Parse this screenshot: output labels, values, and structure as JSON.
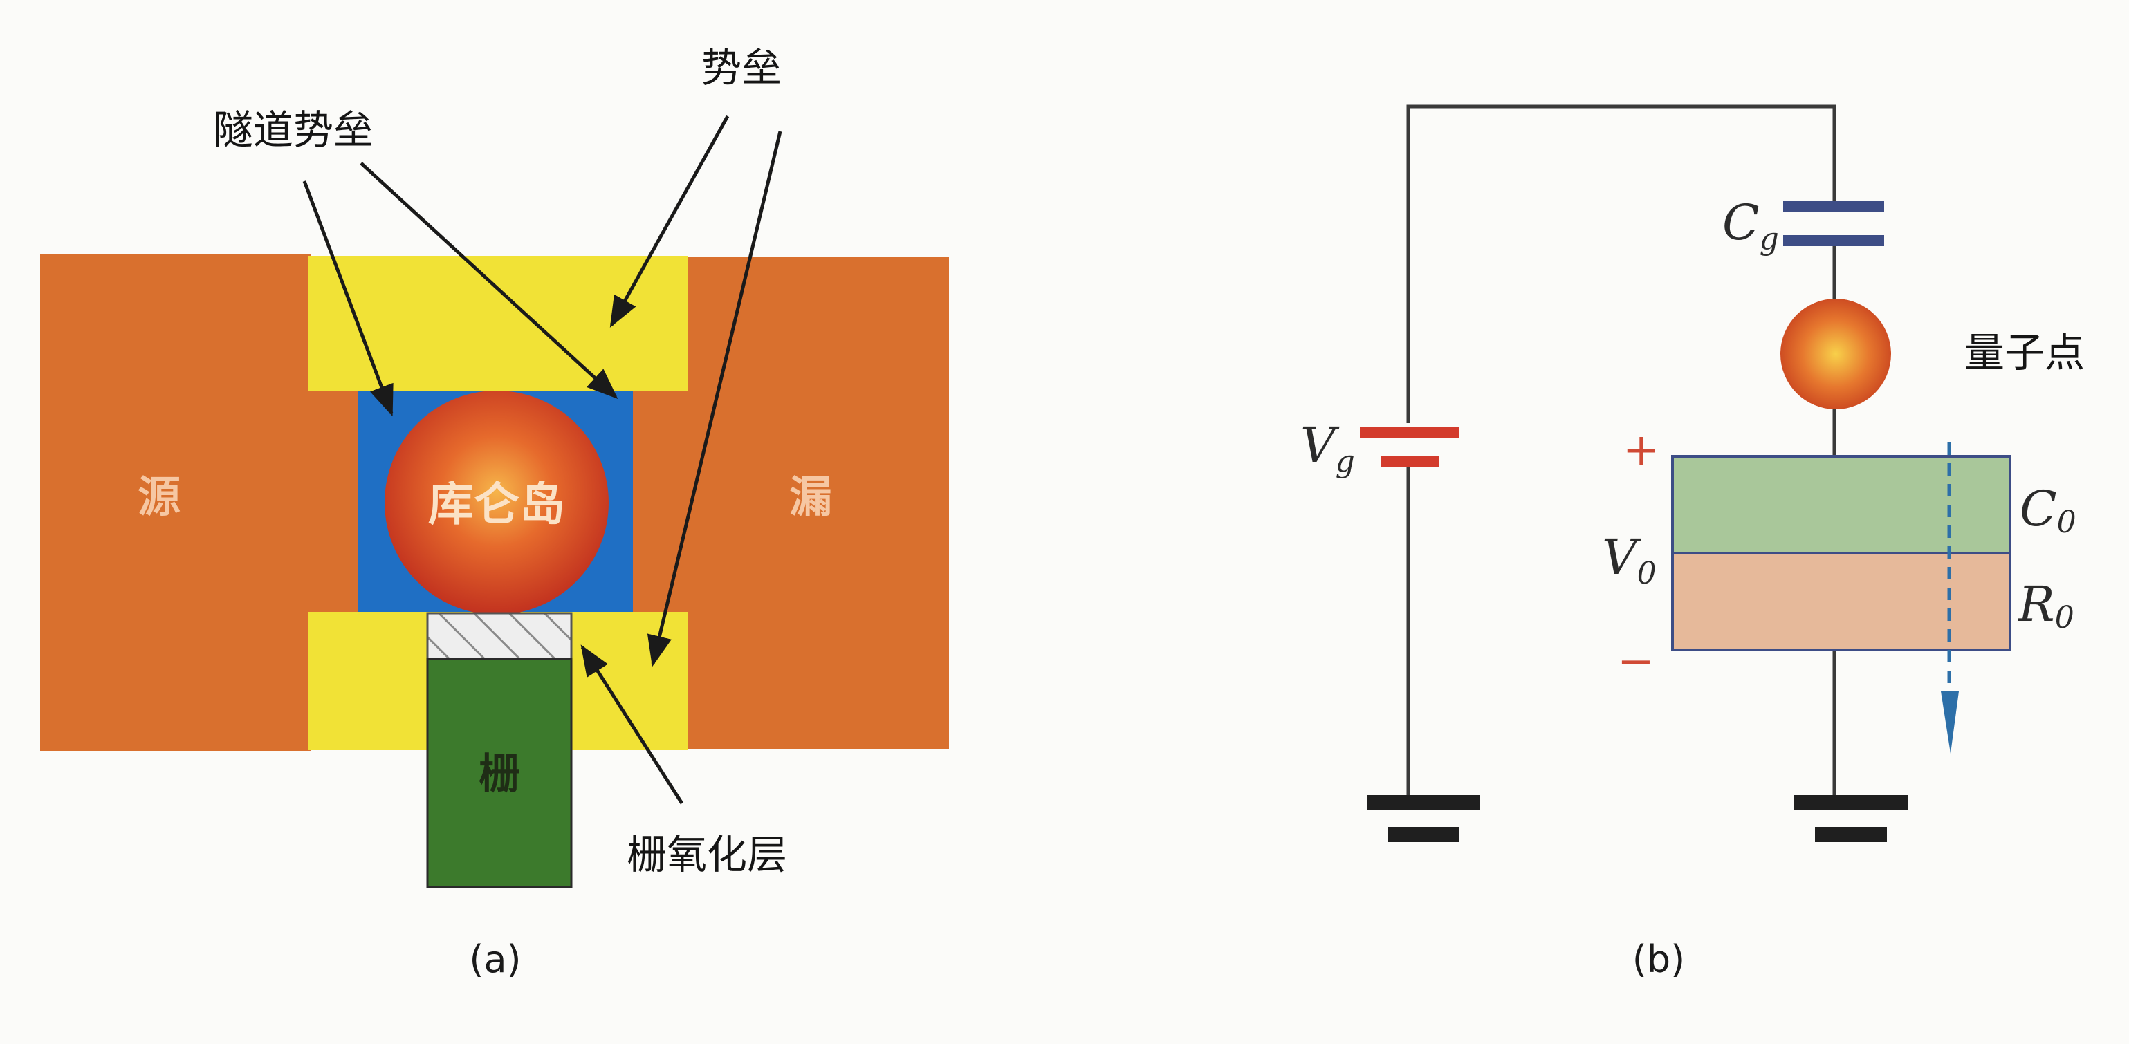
{
  "panel_a": {
    "caption": "(a)",
    "labels": {
      "source": "源",
      "drain": "漏",
      "coulomb_island": "库仑岛",
      "gate": "栅",
      "tunnel_barrier": "隧道势垒",
      "barrier": "势垒",
      "gate_oxide": "栅氧化层"
    }
  },
  "panel_b": {
    "caption": "(b)",
    "labels": {
      "vg_main": "V",
      "vg_sub": "g",
      "cg_main": "C",
      "cg_sub": "g",
      "quantum_dot": "量子点",
      "v0_main": "V",
      "v0_sub": "0",
      "c0_main": "C",
      "c0_sub": "0",
      "r0_main": "R",
      "r0_sub": "0",
      "plus": "+",
      "minus": "−"
    }
  },
  "colors": {
    "substrate": "#d9702e",
    "barrier": "#f1e236",
    "tunnel_barrier": "#1f6fc4",
    "island": "#dc4f25",
    "gate": "#3c7a2c",
    "oxide": "#e8e8e8",
    "capacitor_plate": "#3d4d86",
    "battery_plate": "#d33b2c",
    "c0_fill": "#a9c79a",
    "r0_fill": "#e6b99a",
    "wire": "#3a3a3a"
  }
}
